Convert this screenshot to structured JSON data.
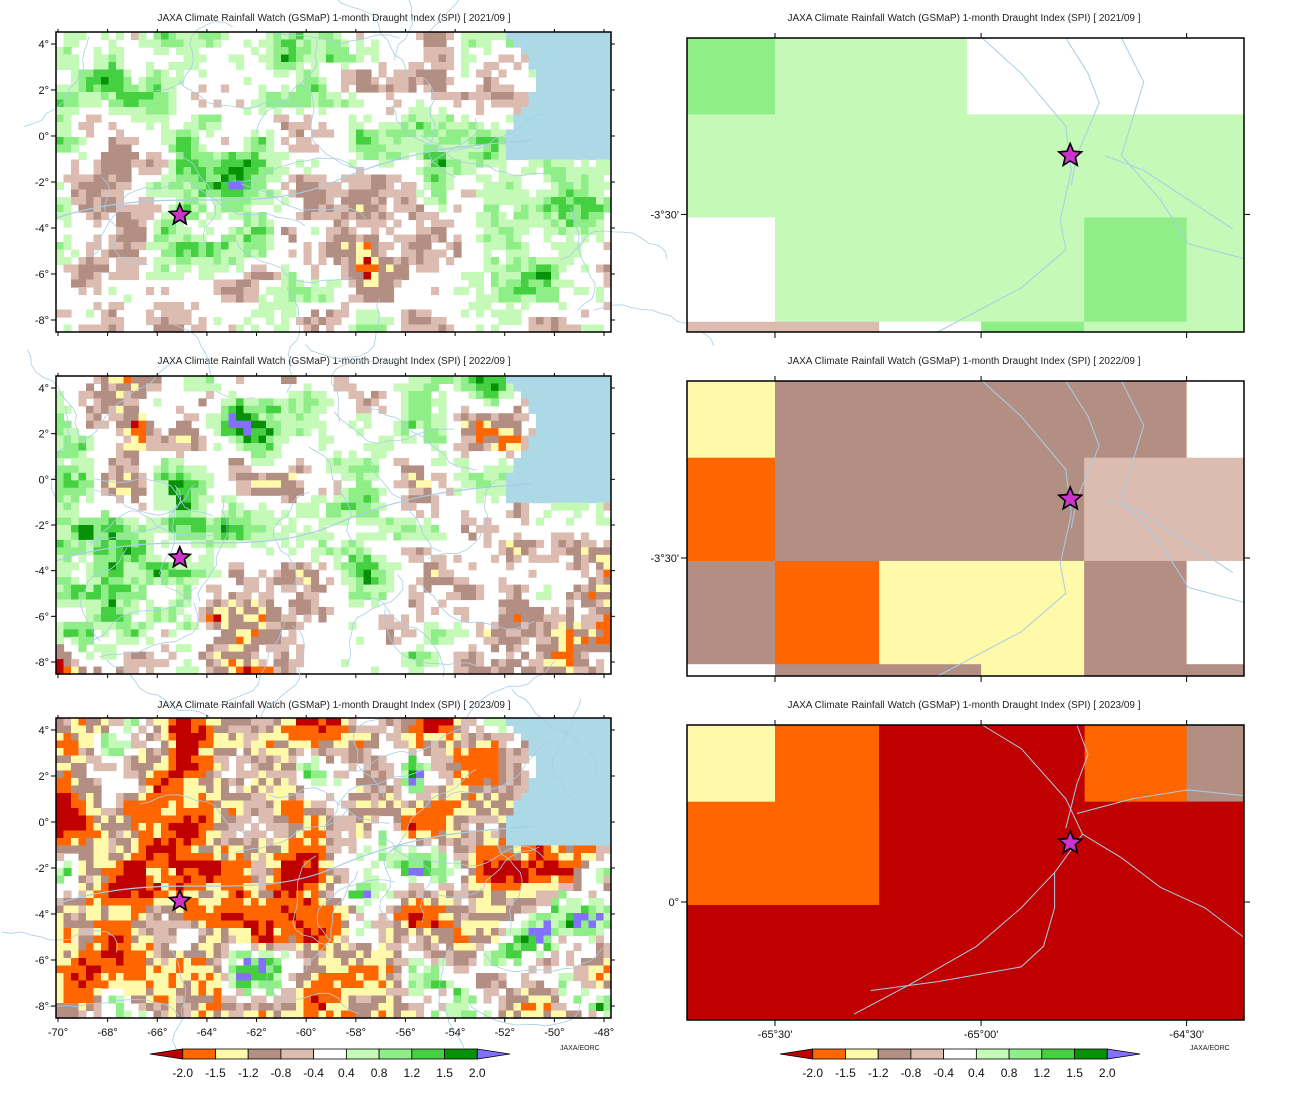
{
  "palette": {
    "lt_-2.0": "#c00000",
    "-2.0_-1.5": "#ff6600",
    "-1.5_-1.2": "#fff9aa",
    "-1.2_-0.8": "#b28f82",
    "-0.8_-0.4": "#dcbcb0",
    "-0.4_0.4": "#ffffff",
    "0.4_0.8": "#c5f9b8",
    "0.8_1.2": "#90ee88",
    "1.2_1.5": "#44d040",
    "1.5_2.0": "#079107",
    "gt_2.0": "#8470ff",
    "ocean": "#add8e6",
    "river": "#a8cde6",
    "marker": "#cc33cc"
  },
  "colorbar": {
    "labels": [
      "-2.0",
      "-1.5",
      "-1.2",
      "-0.8",
      "-0.4",
      "0.4",
      "0.8",
      "1.2",
      "1.5",
      "2.0"
    ],
    "credit": "JAXA/EORC"
  },
  "panels": [
    {
      "title": "JAXA Climate Rainfall Watch (GSMaP) 1-month Draught Index (SPI) [ 2021/09 ]",
      "view": "regional",
      "year": "2021/09",
      "y_ticks": [
        "4°",
        "2°",
        "0°",
        "-2°",
        "-4°",
        "-6°",
        "-8°"
      ],
      "x_ticks": []
    },
    {
      "title": "JAXA Climate Rainfall Watch (GSMaP) 1-month Draught Index (SPI) [ 2021/09 ]",
      "view": "zoom",
      "year": "2021/09",
      "y_ticks": [
        "-3°30'"
      ],
      "x_ticks": []
    },
    {
      "title": "JAXA Climate Rainfall Watch (GSMaP) 1-month Draught Index (SPI) [ 2022/09 ]",
      "view": "regional",
      "year": "2022/09",
      "y_ticks": [
        "4°",
        "2°",
        "0°",
        "-2°",
        "-4°",
        "-6°",
        "-8°"
      ],
      "x_ticks": []
    },
    {
      "title": "JAXA Climate Rainfall Watch (GSMaP) 1-month Draught Index (SPI) [ 2022/09 ]",
      "view": "zoom",
      "year": "2022/09",
      "y_ticks": [
        "-3°30'"
      ],
      "x_ticks": []
    },
    {
      "title": "JAXA Climate Rainfall Watch (GSMaP) 1-month Draught Index (SPI) [ 2023/09 ]",
      "view": "regional",
      "year": "2023/09",
      "y_ticks": [
        "4°",
        "2°",
        "0°",
        "-2°",
        "-4°",
        "-6°",
        "-8°"
      ],
      "x_ticks": [
        "-70°",
        "-68°",
        "-66°",
        "-64°",
        "-62°",
        "-60°",
        "-58°",
        "-56°",
        "-54°",
        "-52°",
        "-50°",
        "-48°"
      ]
    },
    {
      "title": "JAXA Climate Rainfall Watch (GSMaP) 1-month Draught Index (SPI) [ 2023/09 ]",
      "view": "zoom",
      "year": "2023/09",
      "y_ticks": [
        "0°"
      ],
      "x_ticks": [
        "-65°30'",
        "-65°00'",
        "-64°30'"
      ]
    }
  ]
}
